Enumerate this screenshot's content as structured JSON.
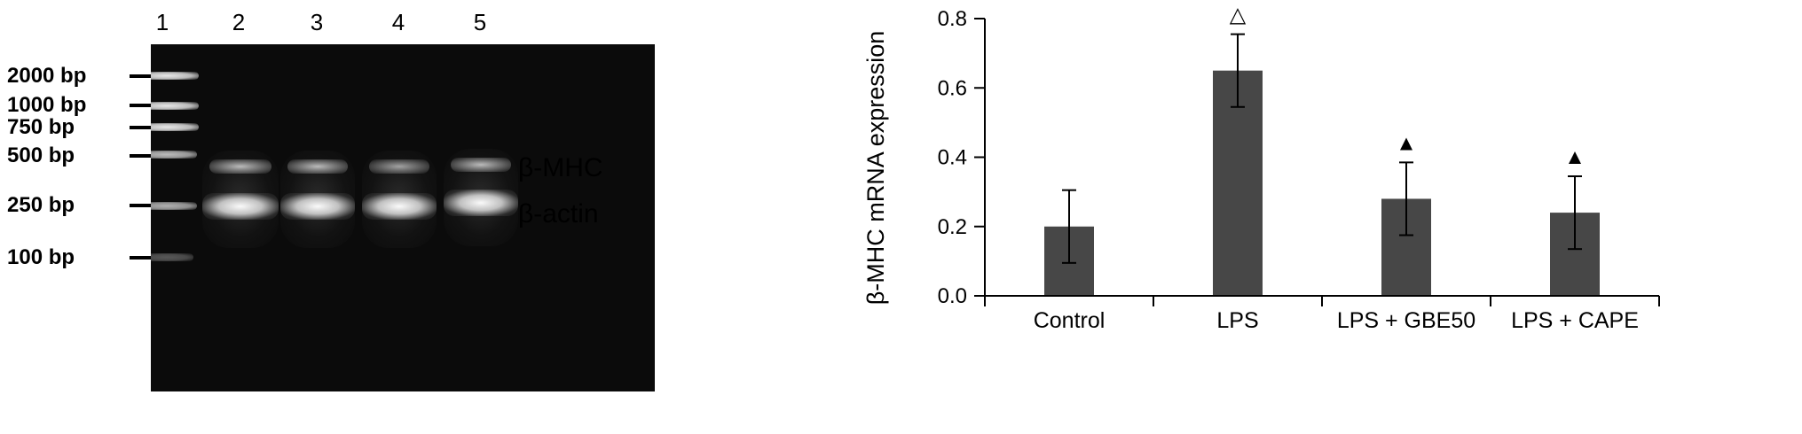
{
  "gel": {
    "lanes": [
      "1",
      "2",
      "3",
      "4",
      "5"
    ],
    "markers": [
      "2000 bp",
      "1000 bp",
      "750 bp",
      "500 bp",
      "250 bp",
      "100 bp"
    ],
    "band_labels": {
      "mhc": "β-MHC",
      "actin": "β-actin"
    }
  },
  "chart_data": {
    "type": "bar",
    "categories": [
      "Control",
      "LPS",
      "LPS + GBE50",
      "LPS + CAPE"
    ],
    "values": [
      0.2,
      0.65,
      0.28,
      0.24
    ],
    "errors": [
      0.105,
      0.105,
      0.105,
      0.105
    ],
    "significance": [
      "",
      "△",
      "▲",
      "▲"
    ],
    "ylabel": "β-MHC mRNA expression",
    "xlabel": "",
    "ylim": [
      0.0,
      0.8
    ],
    "yticks": [
      "0.0",
      "0.2",
      "0.4",
      "0.6",
      "0.8"
    ],
    "bar_color": "#474747",
    "grid": false
  }
}
